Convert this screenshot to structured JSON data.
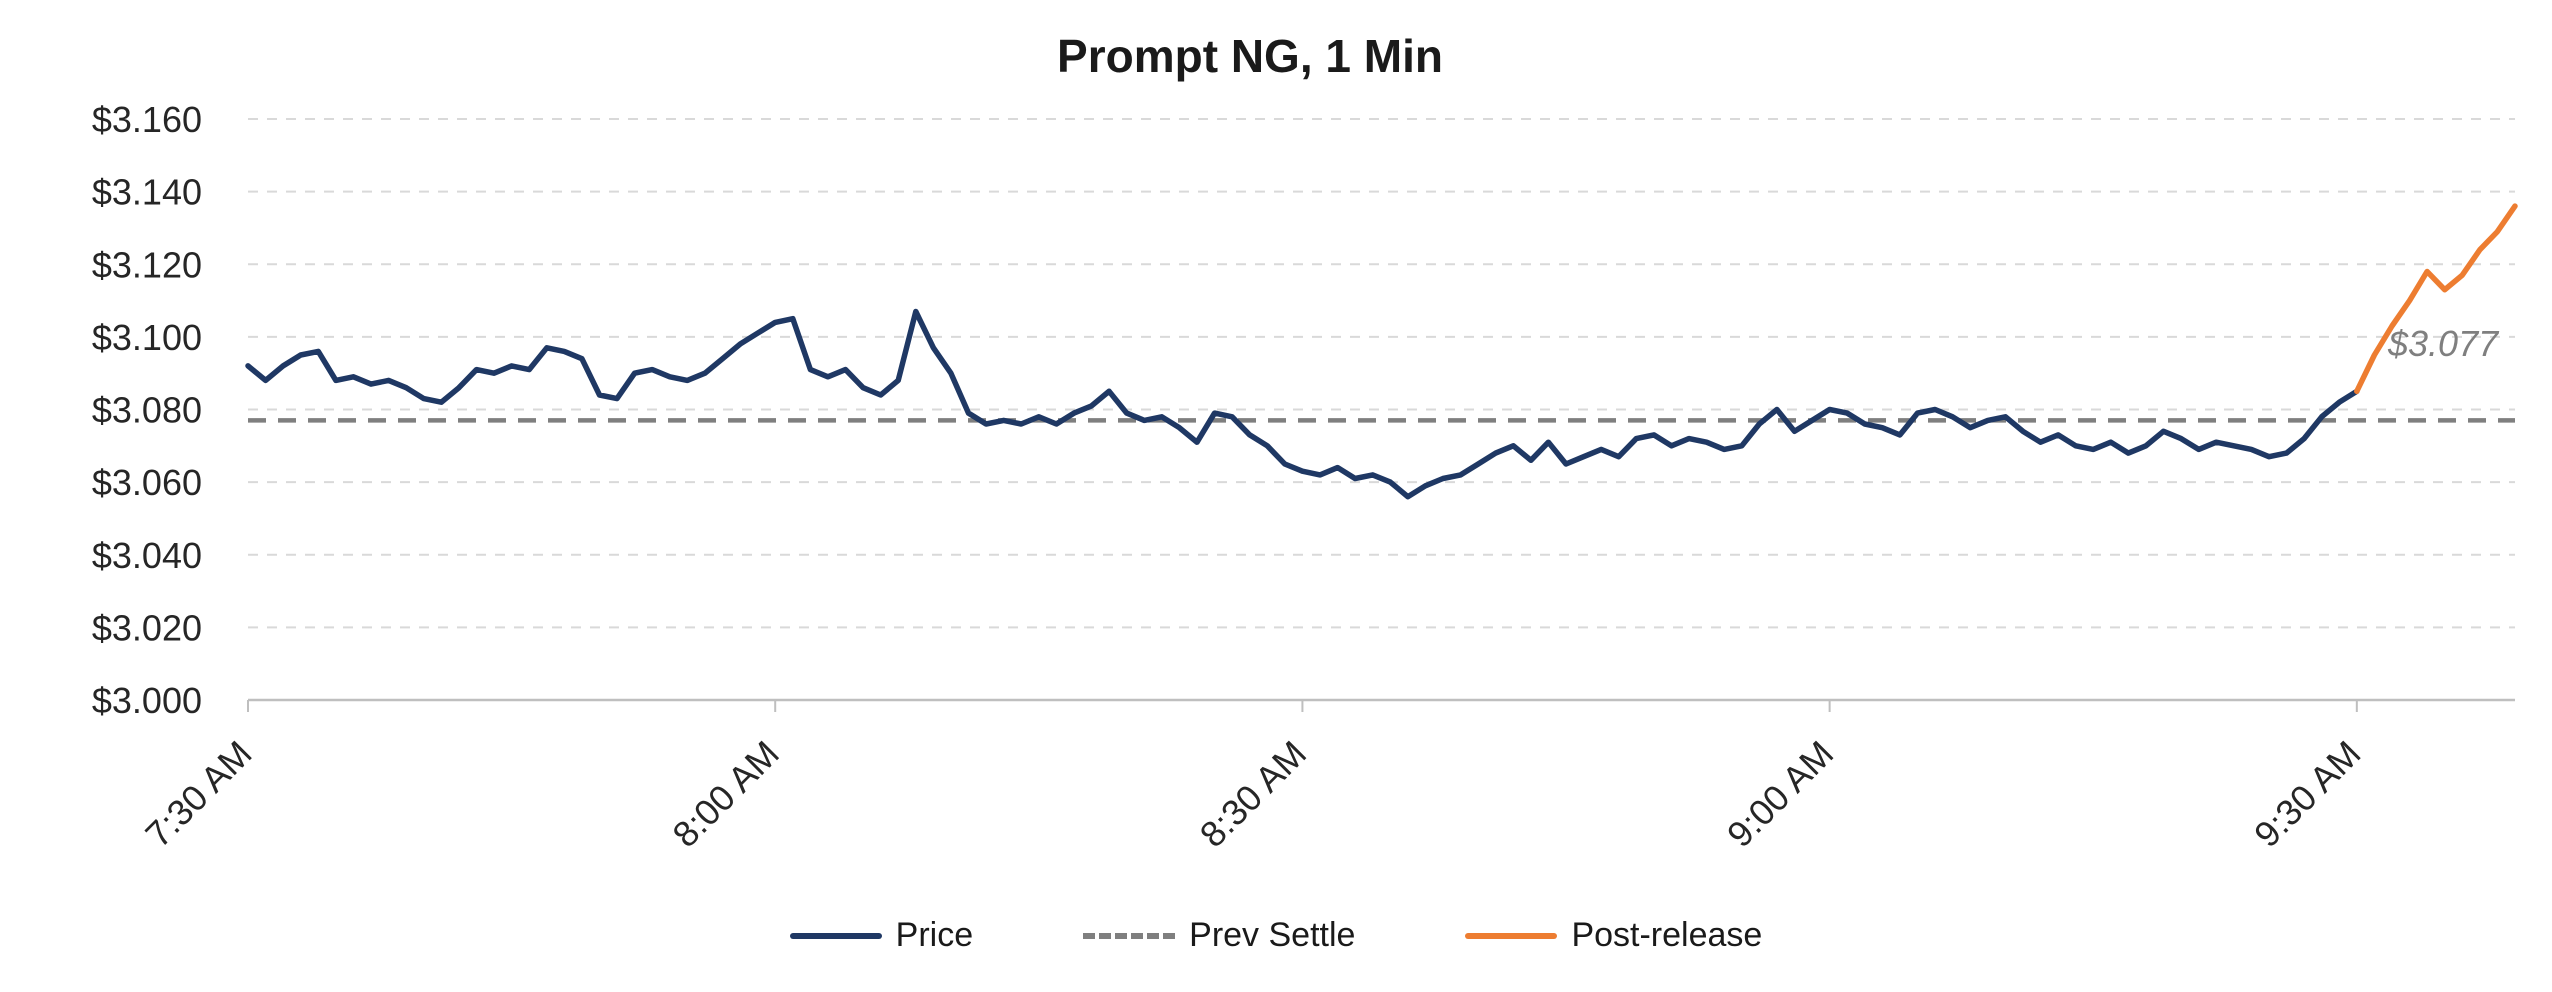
{
  "colors": {
    "price": "#1f3864",
    "prev_settle": "#7f7f7f",
    "post_release": "#ed7d31",
    "grid": "#d9d9d9",
    "axis": "#bfbfbf",
    "annotation": "#7f7f7f",
    "text": "#262626"
  },
  "chart_data": {
    "type": "line",
    "title": "Prompt NG, 1 Min",
    "xlabel": "",
    "ylabel": "",
    "xlim": [
      0,
      129
    ],
    "ylim": [
      3.0,
      3.16
    ],
    "grid": "horizontal-dashed",
    "legend_position": "bottom",
    "legend": [
      "Price",
      "Prev Settle",
      "Post-release"
    ],
    "annotation": "$3.077",
    "prev_settle_value": 3.077,
    "x_ticks": [
      {
        "x": 0,
        "label": "7:30 AM"
      },
      {
        "x": 30,
        "label": "8:00 AM"
      },
      {
        "x": 60,
        "label": "8:30 AM"
      },
      {
        "x": 90,
        "label": "9:00 AM"
      },
      {
        "x": 120,
        "label": "9:30 AM"
      }
    ],
    "y_ticks": [
      {
        "v": 3.0,
        "label": "$3.000"
      },
      {
        "v": 3.02,
        "label": "$3.020"
      },
      {
        "v": 3.04,
        "label": "$3.040"
      },
      {
        "v": 3.06,
        "label": "$3.060"
      },
      {
        "v": 3.08,
        "label": "$3.080"
      },
      {
        "v": 3.1,
        "label": "$3.100"
      },
      {
        "v": 3.12,
        "label": "$3.120"
      },
      {
        "v": 3.14,
        "label": "$3.140"
      },
      {
        "v": 3.16,
        "label": "$3.160"
      }
    ],
    "series": [
      {
        "name": "Price",
        "color": "#1f3864",
        "x_start_minute": 0,
        "x_step_minutes": 1,
        "values": [
          3.092,
          3.088,
          3.092,
          3.095,
          3.096,
          3.088,
          3.089,
          3.087,
          3.088,
          3.086,
          3.083,
          3.082,
          3.086,
          3.091,
          3.09,
          3.092,
          3.091,
          3.097,
          3.096,
          3.094,
          3.084,
          3.083,
          3.09,
          3.091,
          3.089,
          3.088,
          3.09,
          3.094,
          3.098,
          3.101,
          3.104,
          3.105,
          3.091,
          3.089,
          3.091,
          3.086,
          3.084,
          3.088,
          3.107,
          3.097,
          3.09,
          3.079,
          3.076,
          3.077,
          3.076,
          3.078,
          3.076,
          3.079,
          3.081,
          3.085,
          3.079,
          3.077,
          3.078,
          3.075,
          3.071,
          3.079,
          3.078,
          3.073,
          3.07,
          3.065,
          3.063,
          3.062,
          3.064,
          3.061,
          3.062,
          3.06,
          3.056,
          3.059,
          3.061,
          3.062,
          3.065,
          3.068,
          3.07,
          3.066,
          3.071,
          3.065,
          3.067,
          3.069,
          3.067,
          3.072,
          3.073,
          3.07,
          3.072,
          3.071,
          3.069,
          3.07,
          3.076,
          3.08,
          3.074,
          3.077,
          3.08,
          3.079,
          3.076,
          3.075,
          3.073,
          3.079,
          3.08,
          3.078,
          3.075,
          3.077,
          3.078,
          3.074,
          3.071,
          3.073,
          3.07,
          3.069,
          3.071,
          3.068,
          3.07,
          3.074,
          3.072,
          3.069,
          3.071,
          3.07,
          3.069,
          3.067,
          3.068,
          3.072,
          3.078,
          3.082,
          3.085
        ]
      },
      {
        "name": "Post-release",
        "color": "#ed7d31",
        "x_start_minute": 120,
        "x_step_minutes": 1,
        "values": [
          3.085,
          3.095,
          3.103,
          3.11,
          3.118,
          3.113,
          3.117,
          3.124,
          3.129,
          3.136
        ]
      }
    ]
  }
}
